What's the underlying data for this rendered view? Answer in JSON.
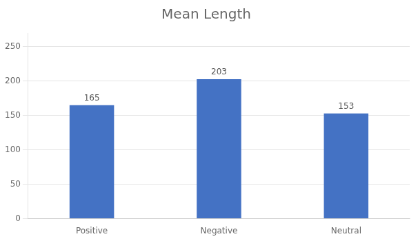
{
  "chart_data": {
    "type": "bar",
    "title": "Mean Length",
    "categories": [
      "Positive",
      "Negative",
      "Neutral"
    ],
    "values": [
      165,
      203,
      153
    ],
    "color": "#4472C4",
    "ylim": [
      0,
      270
    ],
    "yticks": [
      0,
      50,
      100,
      150,
      200,
      250
    ],
    "grid": true,
    "data_labels": true
  }
}
